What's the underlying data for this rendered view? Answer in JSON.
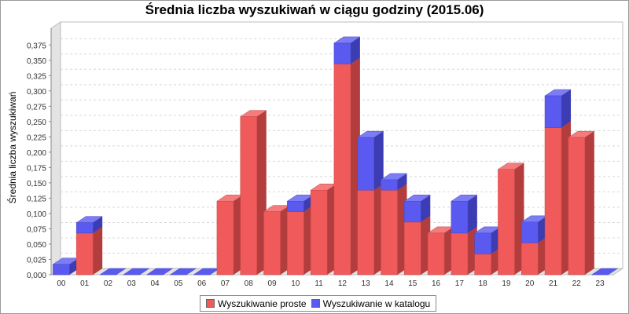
{
  "chart_data": {
    "type": "bar",
    "stacked": true,
    "render": "3d",
    "title": "Średnia liczba wyszukiwań w ciągu godziny (2015.06)",
    "xlabel": "",
    "ylabel": "Średnia liczba wyszukiwań",
    "ylim": [
      0,
      0.4
    ],
    "yticks": [
      "0,000",
      "0,025",
      "0,050",
      "0,075",
      "0,100",
      "0,125",
      "0,150",
      "0,175",
      "0,200",
      "0,225",
      "0,250",
      "0,275",
      "0,300",
      "0,325",
      "0,350",
      "0,375"
    ],
    "categories": [
      "00",
      "01",
      "02",
      "03",
      "04",
      "05",
      "06",
      "07",
      "08",
      "09",
      "10",
      "11",
      "12",
      "13",
      "14",
      "15",
      "16",
      "17",
      "18",
      "19",
      "20",
      "21",
      "22",
      "23"
    ],
    "series": [
      {
        "name": "Wyszukiwanie proste",
        "color": "#f05a5a",
        "values": [
          0,
          0.068,
          0,
          0,
          0,
          0,
          0,
          0.12,
          0.258,
          0.103,
          0.103,
          0.138,
          0.344,
          0.138,
          0.138,
          0.086,
          0.068,
          0.068,
          0.034,
          0.172,
          0.052,
          0.24,
          0.224,
          0
        ]
      },
      {
        "name": "Wyszukiwanie w katalogu",
        "color": "#5a5af0",
        "values": [
          0.017,
          0.017,
          0,
          0,
          0,
          0,
          0,
          0,
          0,
          0,
          0.017,
          0,
          0.034,
          0.086,
          0.017,
          0.034,
          0,
          0.052,
          0.034,
          0,
          0.034,
          0.052,
          0,
          0
        ]
      }
    ],
    "grid": true,
    "legend_position": "bottom"
  }
}
